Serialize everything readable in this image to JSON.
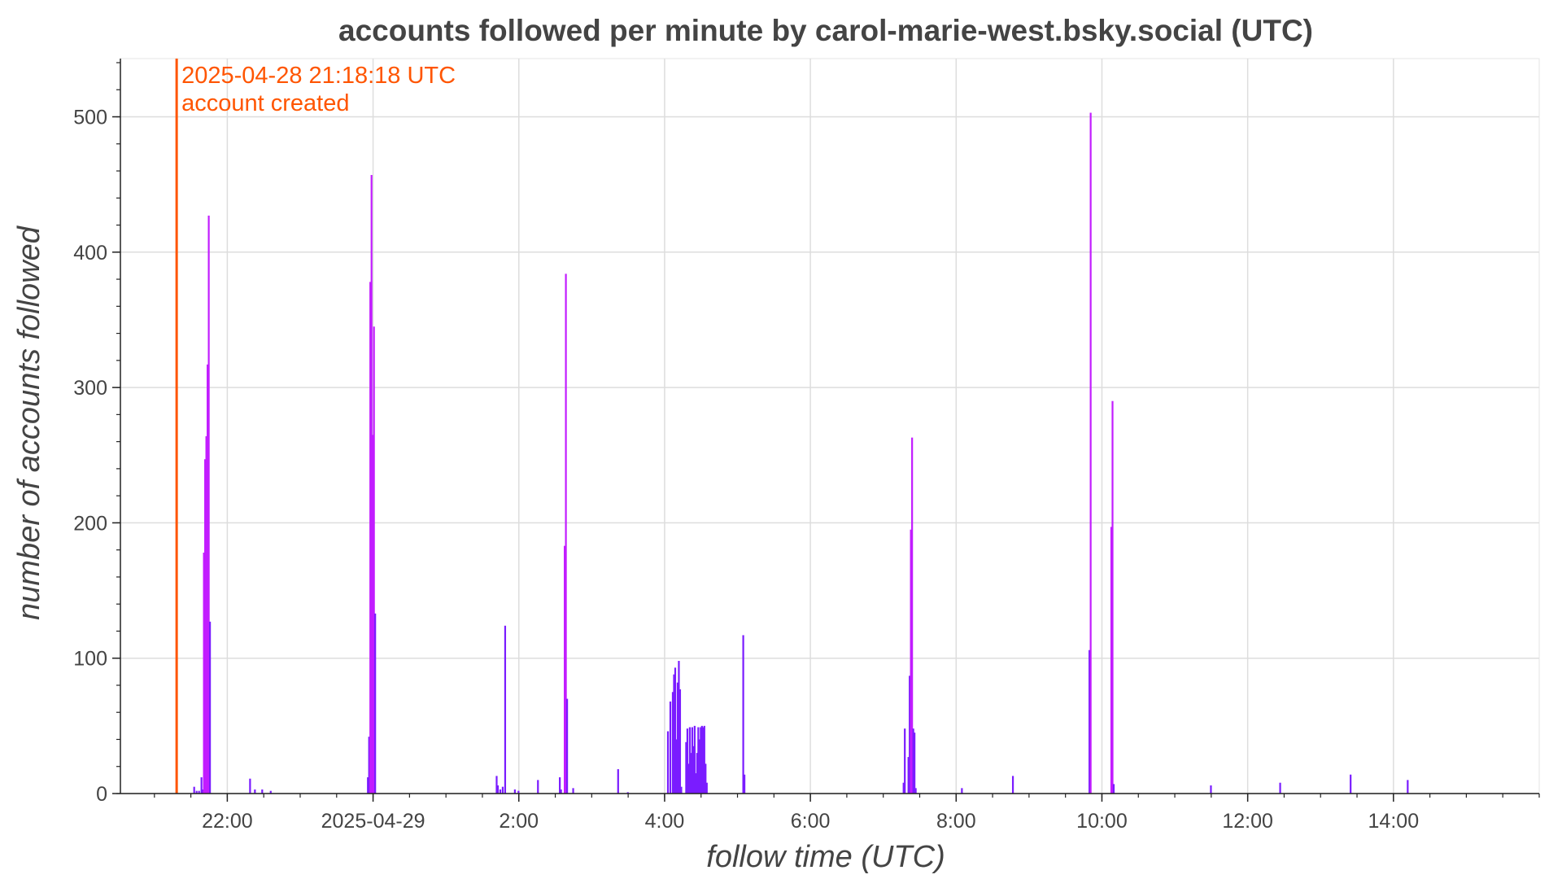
{
  "chart_data": {
    "type": "bar",
    "title": "accounts followed per minute by carol-marie-west.bsky.social (UTC)",
    "xlabel": "follow time (UTC)",
    "ylabel": "number of accounts followed",
    "x_unit": "minutes since 2025-04-28 00:00 UTC",
    "xlim": [
      1232,
      2400
    ],
    "ylim": [
      0,
      543
    ],
    "grid": true,
    "legend": "none",
    "colors": {
      "bars": "#7a1cff",
      "bars_tall": "#c21dff",
      "annotation": "#ff5500",
      "grid": "#dddddd",
      "axis": "#222222",
      "text": "#444444"
    },
    "x_ticks": [
      {
        "value": 1320,
        "label": "22:00"
      },
      {
        "value": 1440,
        "label": "2025-04-29"
      },
      {
        "value": 1560,
        "label": "2:00"
      },
      {
        "value": 1680,
        "label": "4:00"
      },
      {
        "value": 1800,
        "label": "6:00"
      },
      {
        "value": 1920,
        "label": "8:00"
      },
      {
        "value": 2040,
        "label": "10:00"
      },
      {
        "value": 2160,
        "label": "12:00"
      },
      {
        "value": 2280,
        "label": "14:00"
      }
    ],
    "y_ticks": [
      0,
      100,
      200,
      300,
      400,
      500
    ],
    "annotation": {
      "x": 1278.3,
      "line1": "2025-04-28 21:18:18 UTC",
      "line2": "account created"
    },
    "bars": [
      [
        1292,
        5
      ],
      [
        1294,
        2
      ],
      [
        1296,
        2
      ],
      [
        1298,
        12
      ],
      [
        1299,
        3
      ],
      [
        1300,
        178
      ],
      [
        1301,
        247
      ],
      [
        1302,
        264
      ],
      [
        1303,
        317
      ],
      [
        1304,
        427
      ],
      [
        1305,
        127
      ],
      [
        1338,
        11
      ],
      [
        1342,
        3
      ],
      [
        1348,
        3
      ],
      [
        1355,
        2
      ],
      [
        1435,
        12
      ],
      [
        1436,
        42
      ],
      [
        1437,
        378
      ],
      [
        1438,
        457
      ],
      [
        1439,
        265
      ],
      [
        1440,
        345
      ],
      [
        1441,
        133
      ],
      [
        1541,
        13
      ],
      [
        1542,
        6
      ],
      [
        1544,
        3
      ],
      [
        1546,
        5
      ],
      [
        1548,
        124
      ],
      [
        1556,
        3
      ],
      [
        1559,
        2
      ],
      [
        1575,
        10
      ],
      [
        1593,
        12
      ],
      [
        1594,
        3
      ],
      [
        1597,
        183
      ],
      [
        1598,
        384
      ],
      [
        1599,
        70
      ],
      [
        1604,
        4
      ],
      [
        1641,
        18
      ],
      [
        1649,
        1
      ],
      [
        1682,
        46
      ],
      [
        1684,
        68
      ],
      [
        1686,
        75
      ],
      [
        1687,
        88
      ],
      [
        1688,
        93
      ],
      [
        1689,
        40
      ],
      [
        1690,
        82
      ],
      [
        1691,
        98
      ],
      [
        1692,
        77
      ],
      [
        1693,
        5
      ],
      [
        1697,
        38
      ],
      [
        1698,
        48
      ],
      [
        1699,
        22
      ],
      [
        1700,
        49
      ],
      [
        1701,
        30
      ],
      [
        1702,
        49
      ],
      [
        1703,
        35
      ],
      [
        1704,
        50
      ],
      [
        1705,
        15
      ],
      [
        1706,
        30
      ],
      [
        1707,
        49
      ],
      [
        1708,
        40
      ],
      [
        1709,
        49
      ],
      [
        1710,
        50
      ],
      [
        1711,
        49
      ],
      [
        1712,
        50
      ],
      [
        1713,
        22
      ],
      [
        1714,
        8
      ],
      [
        1744,
        117
      ],
      [
        1745,
        14
      ],
      [
        1876,
        8
      ],
      [
        1877,
        48
      ],
      [
        1880,
        27
      ],
      [
        1881,
        87
      ],
      [
        1882,
        195
      ],
      [
        1883,
        263
      ],
      [
        1884,
        48
      ],
      [
        1885,
        45
      ],
      [
        1886,
        4
      ],
      [
        1924,
        4
      ],
      [
        1966,
        13
      ],
      [
        2029,
        106
      ],
      [
        2030,
        503
      ],
      [
        2047,
        197
      ],
      [
        2048,
        290
      ],
      [
        2049,
        7
      ],
      [
        2129,
        6
      ],
      [
        2186,
        8
      ],
      [
        2244,
        14
      ],
      [
        2291,
        10
      ]
    ]
  }
}
